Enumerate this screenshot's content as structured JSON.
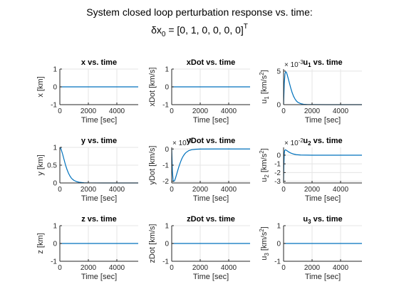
{
  "figure": {
    "title_line1": "System closed loop perturbation response vs. time:",
    "title_line2_base": "δx",
    "title_line2_sub": "0",
    "title_line2_rest": " = [0, 1, 0, 0, 0, 0]",
    "title_line2_sup": "T"
  },
  "style": {
    "line_color": "#0072BD",
    "grid_color": "#e5e5e5",
    "axis_color": "#262626"
  },
  "chart_data": [
    {
      "type": "line",
      "title": "x vs. time",
      "xlabel": "Time [sec]",
      "ylabel": "x [km]",
      "xlim": [
        0,
        5500
      ],
      "ylim": [
        -1,
        1
      ],
      "xticks": [
        0,
        2000,
        4000
      ],
      "xtick_labels": [
        "0",
        "2000",
        "4000"
      ],
      "yticks": [
        -1,
        0,
        1
      ],
      "ytick_labels": [
        "-1",
        "0",
        "1"
      ],
      "x": [
        0,
        5500
      ],
      "y": [
        0,
        0
      ],
      "grid": true
    },
    {
      "type": "line",
      "title": "xDot vs. time",
      "xlabel": "Time [sec]",
      "ylabel": "xDot [km/s]",
      "xlim": [
        0,
        5500
      ],
      "ylim": [
        -1,
        1
      ],
      "xticks": [
        0,
        2000,
        4000
      ],
      "xtick_labels": [
        "0",
        "2000",
        "4000"
      ],
      "yticks": [
        -1,
        0,
        1
      ],
      "ytick_labels": [
        "-1",
        "0",
        "1"
      ],
      "x": [
        0,
        5500
      ],
      "y": [
        0,
        0
      ],
      "grid": true
    },
    {
      "type": "line",
      "title_main": "u",
      "title_sub": "1",
      "title_rest": " vs. time",
      "xlabel": "Time [sec]",
      "ylabel_main": "u",
      "ylabel_sub": "1",
      "ylabel_rest": " [km/s",
      "ylabel_sup": "2",
      "ylabel_end": "]",
      "exponent_base": "× 10",
      "exponent_power": "-3",
      "xlim": [
        0,
        5500
      ],
      "ylim": [
        0,
        5.3
      ],
      "xticks": [
        0,
        2000,
        4000
      ],
      "xtick_labels": [
        "0",
        "2000",
        "4000"
      ],
      "yticks": [
        0,
        5
      ],
      "ytick_labels": [
        "0",
        "5"
      ],
      "x": [
        0,
        50,
        100,
        150,
        200,
        250,
        300,
        400,
        500,
        600,
        700,
        800,
        900,
        1000,
        1200,
        1400,
        1700,
        2000,
        3000,
        5500
      ],
      "y": [
        0,
        3.2,
        4.6,
        4.9,
        4.8,
        4.5,
        4.1,
        3.3,
        2.5,
        1.8,
        1.25,
        0.85,
        0.55,
        0.35,
        0.15,
        0.06,
        0.02,
        0.01,
        0,
        0
      ],
      "grid": true
    },
    {
      "type": "line",
      "title": "y vs. time",
      "xlabel": "Time [sec]",
      "ylabel": "y [km]",
      "xlim": [
        0,
        5500
      ],
      "ylim": [
        0,
        1
      ],
      "xticks": [
        0,
        2000,
        4000
      ],
      "xtick_labels": [
        "0",
        "2000",
        "4000"
      ],
      "yticks": [
        0,
        0.5,
        1
      ],
      "ytick_labels": [
        "0",
        "0.5",
        "1"
      ],
      "x": [
        0,
        50,
        100,
        200,
        300,
        400,
        500,
        600,
        700,
        800,
        900,
        1000,
        1200,
        1400,
        1700,
        2000,
        3000,
        5500
      ],
      "y": [
        1,
        0.98,
        0.93,
        0.8,
        0.65,
        0.5,
        0.38,
        0.28,
        0.2,
        0.14,
        0.1,
        0.07,
        0.035,
        0.017,
        0.006,
        0.002,
        0,
        0
      ],
      "grid": true
    },
    {
      "type": "line",
      "title": "yDot vs. time",
      "xlabel": "Time [sec]",
      "ylabel": "yDot [km/s]",
      "exponent_base": "× 10",
      "exponent_power": "-3",
      "xlim": [
        0,
        5500
      ],
      "ylim": [
        -2.1,
        0.1
      ],
      "xticks": [
        0,
        2000,
        4000
      ],
      "xtick_labels": [
        "0",
        "2000",
        "4000"
      ],
      "yticks": [
        -2,
        -1,
        0
      ],
      "ytick_labels": [
        "-2",
        "-1",
        "0"
      ],
      "x": [
        0,
        50,
        100,
        150,
        200,
        250,
        300,
        400,
        500,
        600,
        700,
        800,
        900,
        1000,
        1200,
        1400,
        1700,
        2000,
        3000,
        5500
      ],
      "y": [
        0,
        -1.4,
        -1.95,
        -2.0,
        -1.95,
        -1.85,
        -1.7,
        -1.4,
        -1.1,
        -0.85,
        -0.62,
        -0.45,
        -0.32,
        -0.22,
        -0.1,
        -0.045,
        -0.015,
        -0.005,
        0,
        0
      ],
      "grid": true
    },
    {
      "type": "line",
      "title_main": "u",
      "title_sub": "2",
      "title_rest": " vs. time",
      "xlabel": "Time [sec]",
      "ylabel_main": "u",
      "ylabel_sub": "2",
      "ylabel_rest": " [km/s",
      "ylabel_sup": "2",
      "ylabel_end": "]",
      "exponent_base": "× 10",
      "exponent_power": "-2",
      "xlim": [
        0,
        5500
      ],
      "ylim": [
        -3.2,
        0.9
      ],
      "xticks": [
        0,
        2000,
        4000
      ],
      "xtick_labels": [
        "0",
        "2000",
        "4000"
      ],
      "yticks": [
        -3,
        -2,
        -1,
        0
      ],
      "ytick_labels": [
        "-3",
        "-2",
        "-1",
        "0"
      ],
      "x": [
        0,
        20,
        50,
        80,
        120,
        180,
        250,
        350,
        500,
        700,
        900,
        1200,
        1600,
        2000,
        3000,
        5500
      ],
      "y": [
        -3.0,
        -1.2,
        0.2,
        0.55,
        0.62,
        0.58,
        0.5,
        0.38,
        0.25,
        0.13,
        0.06,
        0.02,
        0.005,
        0,
        0,
        0
      ],
      "grid": true
    },
    {
      "type": "line",
      "title": "z vs. time",
      "xlabel": "Time [sec]",
      "ylabel": "z [km]",
      "xlim": [
        0,
        5500
      ],
      "ylim": [
        -1,
        1
      ],
      "xticks": [
        0,
        2000,
        4000
      ],
      "xtick_labels": [
        "0",
        "2000",
        "4000"
      ],
      "yticks": [
        -1,
        0,
        1
      ],
      "ytick_labels": [
        "-1",
        "0",
        "1"
      ],
      "x": [
        0,
        5500
      ],
      "y": [
        0,
        0
      ],
      "grid": true
    },
    {
      "type": "line",
      "title": "zDot vs. time",
      "xlabel": "Time [sec]",
      "ylabel": "zDot [km/s]",
      "xlim": [
        0,
        5500
      ],
      "ylim": [
        -1,
        1
      ],
      "xticks": [
        0,
        2000,
        4000
      ],
      "xtick_labels": [
        "0",
        "2000",
        "4000"
      ],
      "yticks": [
        -1,
        0,
        1
      ],
      "ytick_labels": [
        "-1",
        "0",
        "1"
      ],
      "x": [
        0,
        5500
      ],
      "y": [
        0,
        0
      ],
      "grid": true
    },
    {
      "type": "line",
      "title_main": "u",
      "title_sub": "3",
      "title_rest": " vs. time",
      "xlabel": "Time [sec]",
      "ylabel_main": "u",
      "ylabel_sub": "3",
      "ylabel_rest": " [km/s",
      "ylabel_sup": "2",
      "ylabel_end": "]",
      "xlim": [
        0,
        5500
      ],
      "ylim": [
        -1,
        1
      ],
      "xticks": [
        0,
        2000,
        4000
      ],
      "xtick_labels": [
        "0",
        "2000",
        "4000"
      ],
      "yticks": [
        -1,
        0,
        1
      ],
      "ytick_labels": [
        "-1",
        "0",
        "1"
      ],
      "x": [
        0,
        5500
      ],
      "y": [
        0,
        0
      ],
      "grid": true
    }
  ]
}
